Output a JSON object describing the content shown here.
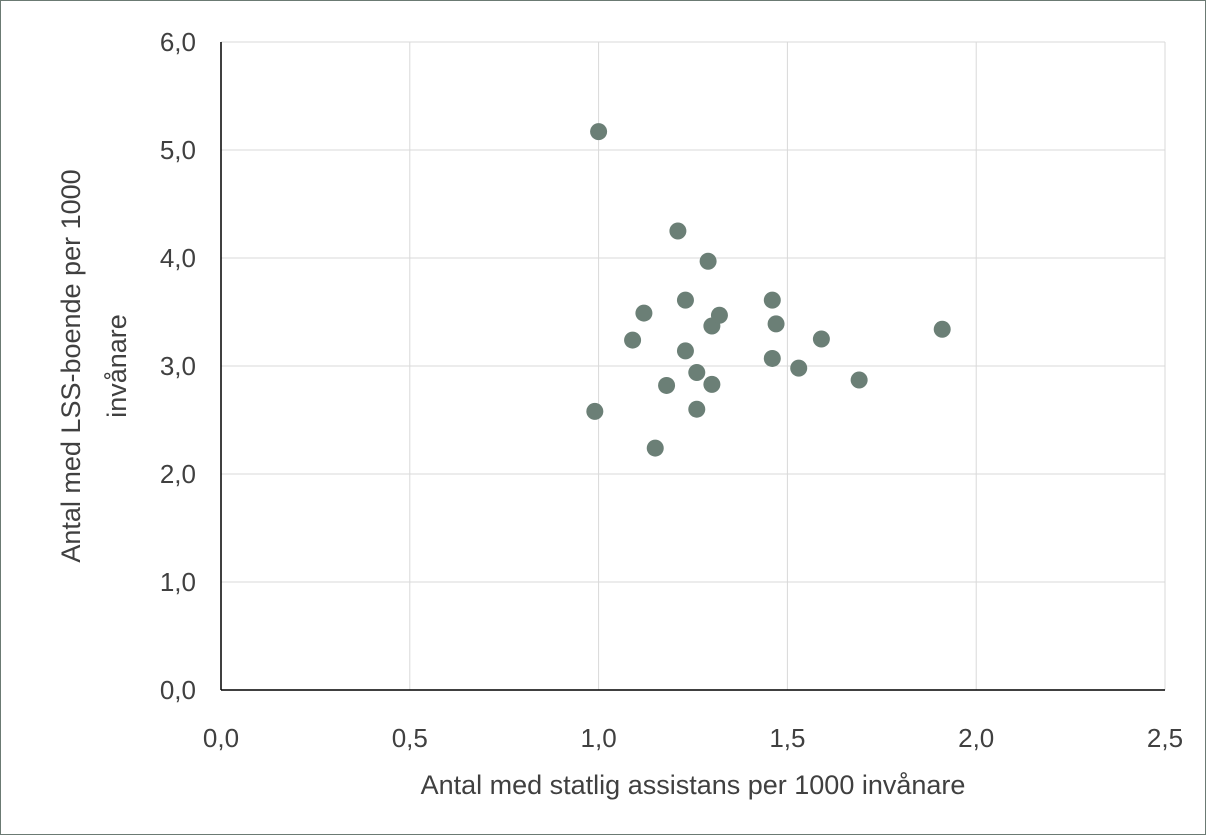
{
  "chart_data": {
    "type": "scatter",
    "title": "",
    "xlabel": "Antal med statlig assistans per 1000 invånare",
    "ylabel_lines": [
      "Antal med LSS-boende per 1000",
      "invånare"
    ],
    "xlim": [
      0,
      2.5
    ],
    "ylim": [
      0,
      6
    ],
    "x_ticks": [
      0,
      0.5,
      1.0,
      1.5,
      2.0,
      2.5
    ],
    "y_ticks": [
      0,
      1.0,
      2.0,
      3.0,
      4.0,
      5.0,
      6.0
    ],
    "x_tick_labels": [
      "0,0",
      "0,5",
      "1,0",
      "1,5",
      "2,0",
      "2,5"
    ],
    "y_tick_labels": [
      "0,0",
      "1,0",
      "2,0",
      "3,0",
      "4,0",
      "5,0",
      "6,0"
    ],
    "grid": true,
    "marker_color": "#6b7f76",
    "points": [
      {
        "x": 1.0,
        "y": 5.17
      },
      {
        "x": 0.99,
        "y": 2.58
      },
      {
        "x": 1.09,
        "y": 3.24
      },
      {
        "x": 1.12,
        "y": 3.49
      },
      {
        "x": 1.15,
        "y": 2.24
      },
      {
        "x": 1.18,
        "y": 2.82
      },
      {
        "x": 1.21,
        "y": 4.25
      },
      {
        "x": 1.23,
        "y": 3.61
      },
      {
        "x": 1.23,
        "y": 3.14
      },
      {
        "x": 1.26,
        "y": 2.94
      },
      {
        "x": 1.26,
        "y": 2.6
      },
      {
        "x": 1.29,
        "y": 3.97
      },
      {
        "x": 1.3,
        "y": 3.37
      },
      {
        "x": 1.3,
        "y": 2.83
      },
      {
        "x": 1.32,
        "y": 3.47
      },
      {
        "x": 1.46,
        "y": 3.61
      },
      {
        "x": 1.47,
        "y": 3.39
      },
      {
        "x": 1.46,
        "y": 3.07
      },
      {
        "x": 1.53,
        "y": 2.98
      },
      {
        "x": 1.59,
        "y": 3.25
      },
      {
        "x": 1.69,
        "y": 2.87
      },
      {
        "x": 1.91,
        "y": 3.34
      }
    ]
  }
}
